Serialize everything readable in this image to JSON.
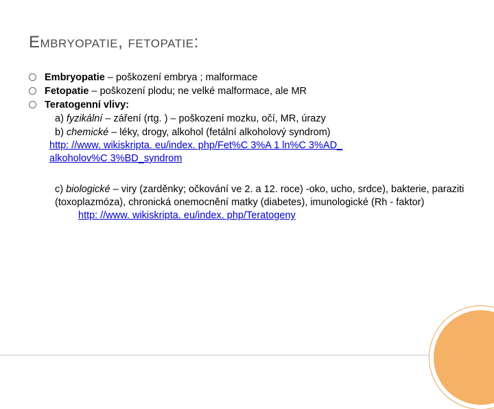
{
  "title": "Embryopatie, fetopatie:",
  "bullets": [
    {
      "label": "Embryopatie",
      "rest": " – poškození embrya ; malformace"
    },
    {
      "label": "Fetopatie",
      "rest": " – poškození plodu; ne velké malformace, ale MR"
    },
    {
      "label": "Teratogenní vlivy:",
      "rest": ""
    }
  ],
  "line_a": {
    "prefix": "a) ",
    "ital": "fyzikální",
    "rest": " – záření (rtg. ) – poškození mozku, očí, MR, úrazy"
  },
  "line_b": {
    "prefix": "b) ",
    "ital": "chemické",
    "rest": " – léky, drogy, alkohol (fetální alkoholový syndrom)"
  },
  "link1_a": "http: //www. wikiskripta. eu/index. php/Fet%C 3%A 1 ln%C 3%AD_",
  "link1_b": "alkoholov%C 3%BD_syndrom",
  "line_c": {
    "prefix": "c) ",
    "ital": "biologické",
    "rest": " – viry (zarděnky; očkování ve 2. a 12. roce)  -oko, ucho, srdce), bakterie, paraziti (toxoplazmóza), chronická onemocnění matky (diabetes), imunologické (Rh - faktor)"
  },
  "link2": "http: //www. wikiskripta. eu/index. php/Teratogeny",
  "colors": {
    "title": "#4a4a4a",
    "text": "#000000",
    "link": "#0000cc",
    "circle": "#f5b267",
    "line": "#c9c9c9"
  }
}
